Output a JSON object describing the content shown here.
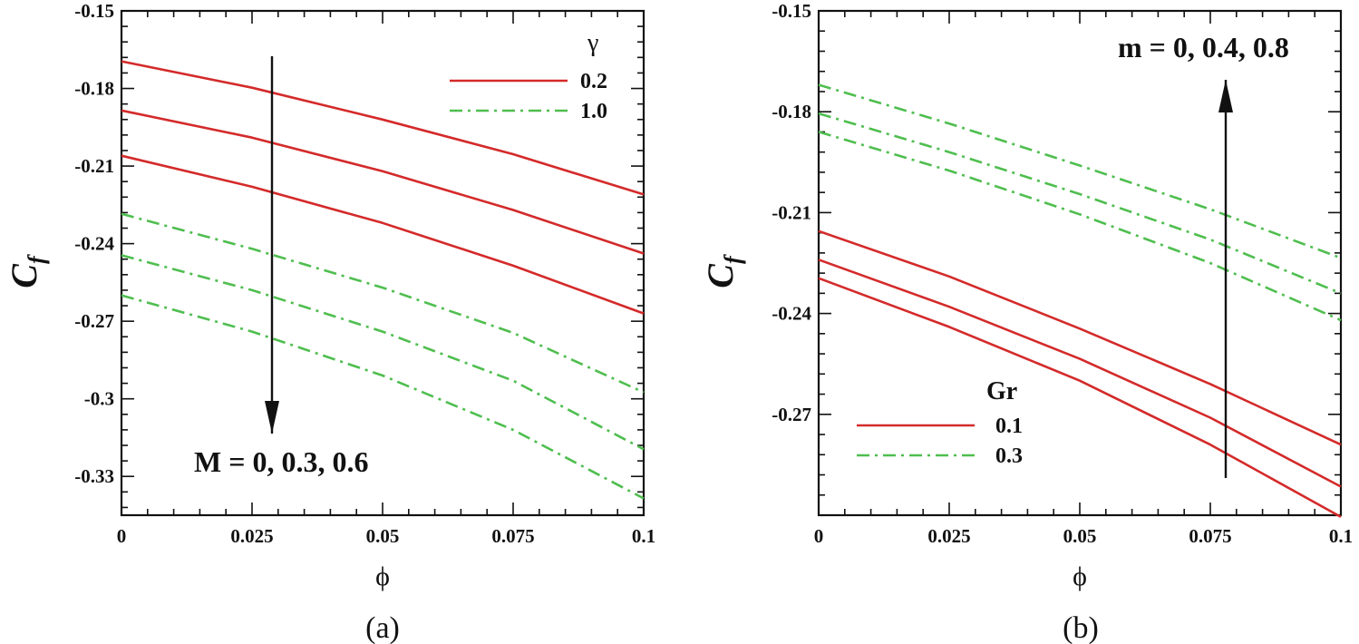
{
  "chart_data": [
    {
      "type": "line",
      "panel_label": "(a)",
      "xlabel": "ϕ",
      "ylabel": "C",
      "ylabel_sub": "f",
      "xlim": [
        0,
        0.1
      ],
      "ylim": [
        -0.345,
        -0.15
      ],
      "xticks": [
        0,
        0.025,
        0.05,
        0.075,
        0.1
      ],
      "xtick_labels": [
        "0",
        "0.025",
        "0.05",
        "0.075",
        "0.1"
      ],
      "yticks": [
        -0.15,
        -0.18,
        -0.21,
        -0.24,
        -0.27,
        -0.3,
        -0.33
      ],
      "ytick_labels": [
        "-0.15",
        "-0.18",
        "-0.21",
        "-0.24",
        "-0.27",
        "-0.3",
        "-0.33"
      ],
      "legend": {
        "title": "γ",
        "position": "top-right",
        "entries": [
          {
            "label": "0.2",
            "style": "solid"
          },
          {
            "label": "1.0",
            "style": "dashdot"
          }
        ]
      },
      "annotation": {
        "text": "M = 0, 0.3, 0.6",
        "arrow": "down"
      },
      "x": [
        0,
        0.025,
        0.05,
        0.075,
        0.1
      ],
      "series": [
        {
          "name": "γ = 0.2, M = 0",
          "style": "solid",
          "color": "#d42a2a",
          "values": [
            -0.1695,
            -0.1797,
            -0.192,
            -0.2054,
            -0.221
          ]
        },
        {
          "name": "γ = 0.2, M = 0.3",
          "style": "solid",
          "color": "#d42a2a",
          "values": [
            -0.1885,
            -0.199,
            -0.212,
            -0.227,
            -0.2438
          ]
        },
        {
          "name": "γ = 0.2, M = 0.6",
          "style": "solid",
          "color": "#d42a2a",
          "values": [
            -0.206,
            -0.218,
            -0.232,
            -0.2485,
            -0.267
          ]
        },
        {
          "name": "γ = 1.0, M = 0",
          "style": "dashdot",
          "color": "#4fbe4f",
          "values": [
            -0.2285,
            -0.242,
            -0.257,
            -0.2745,
            -0.2975
          ]
        },
        {
          "name": "γ = 1.0, M = 0.3",
          "style": "dashdot",
          "color": "#4fbe4f",
          "values": [
            -0.2445,
            -0.258,
            -0.274,
            -0.293,
            -0.3195
          ]
        },
        {
          "name": "γ = 1.0, M = 0.6",
          "style": "dashdot",
          "color": "#4fbe4f",
          "values": [
            -0.26,
            -0.274,
            -0.291,
            -0.312,
            -0.3385
          ]
        }
      ]
    },
    {
      "type": "line",
      "panel_label": "(b)",
      "xlabel": "ϕ",
      "ylabel": "C",
      "ylabel_sub": "f",
      "xlim": [
        0,
        0.1
      ],
      "ylim": [
        -0.3,
        -0.15
      ],
      "xticks": [
        0,
        0.025,
        0.05,
        0.075,
        0.1
      ],
      "xtick_labels": [
        "0",
        "0.025",
        "0.05",
        "0.075",
        "0.1"
      ],
      "yticks": [
        -0.15,
        -0.18,
        -0.21,
        -0.24,
        -0.27
      ],
      "ytick_labels": [
        "-0.15",
        "-0.18",
        "-0.21",
        "-0.24",
        "-0.27"
      ],
      "legend": {
        "title": "Gr",
        "position": "bottom-left",
        "entries": [
          {
            "label": "0.1",
            "style": "solid"
          },
          {
            "label": "0.3",
            "style": "dashdot"
          }
        ]
      },
      "annotation": {
        "text": "m = 0, 0.4, 0.8",
        "arrow": "up"
      },
      "x": [
        0,
        0.025,
        0.05,
        0.075,
        0.1
      ],
      "series": [
        {
          "name": "Gr = 0.3, m = 0.8",
          "style": "dashdot",
          "color": "#4fbe4f",
          "values": [
            -0.172,
            -0.1835,
            -0.196,
            -0.209,
            -0.2235
          ]
        },
        {
          "name": "Gr = 0.3, m = 0.4",
          "style": "dashdot",
          "color": "#4fbe4f",
          "values": [
            -0.1805,
            -0.192,
            -0.2045,
            -0.218,
            -0.234
          ]
        },
        {
          "name": "Gr = 0.3, m = 0",
          "style": "dashdot",
          "color": "#4fbe4f",
          "values": [
            -0.186,
            -0.1975,
            -0.2105,
            -0.225,
            -0.242
          ]
        },
        {
          "name": "Gr = 0.1, m = 0.8",
          "style": "solid",
          "color": "#d42a2a",
          "values": [
            -0.2155,
            -0.229,
            -0.2445,
            -0.261,
            -0.279
          ]
        },
        {
          "name": "Gr = 0.1, m = 0.4",
          "style": "solid",
          "color": "#d42a2a",
          "values": [
            -0.224,
            -0.238,
            -0.2535,
            -0.271,
            -0.2915
          ]
        },
        {
          "name": "Gr = 0.1, m = 0",
          "style": "solid",
          "color": "#d42a2a",
          "values": [
            -0.2295,
            -0.244,
            -0.26,
            -0.279,
            -0.3005
          ]
        }
      ]
    }
  ]
}
